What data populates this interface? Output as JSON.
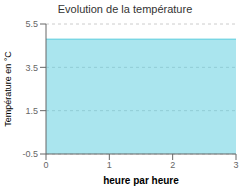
{
  "chart_data": {
    "type": "area",
    "title": "Evolution de la température",
    "xlabel": "heure par heure",
    "ylabel": "Température en °C",
    "x": [
      0,
      3
    ],
    "values": [
      4.8,
      4.8
    ],
    "color": "#55ccdd",
    "xlim": [
      0,
      3
    ],
    "ylim": [
      -0.5,
      5.5
    ],
    "xticks": [
      0,
      1,
      2,
      3
    ],
    "yticks": [
      -0.5,
      1.5,
      3.5,
      5.5
    ],
    "grid": true
  }
}
